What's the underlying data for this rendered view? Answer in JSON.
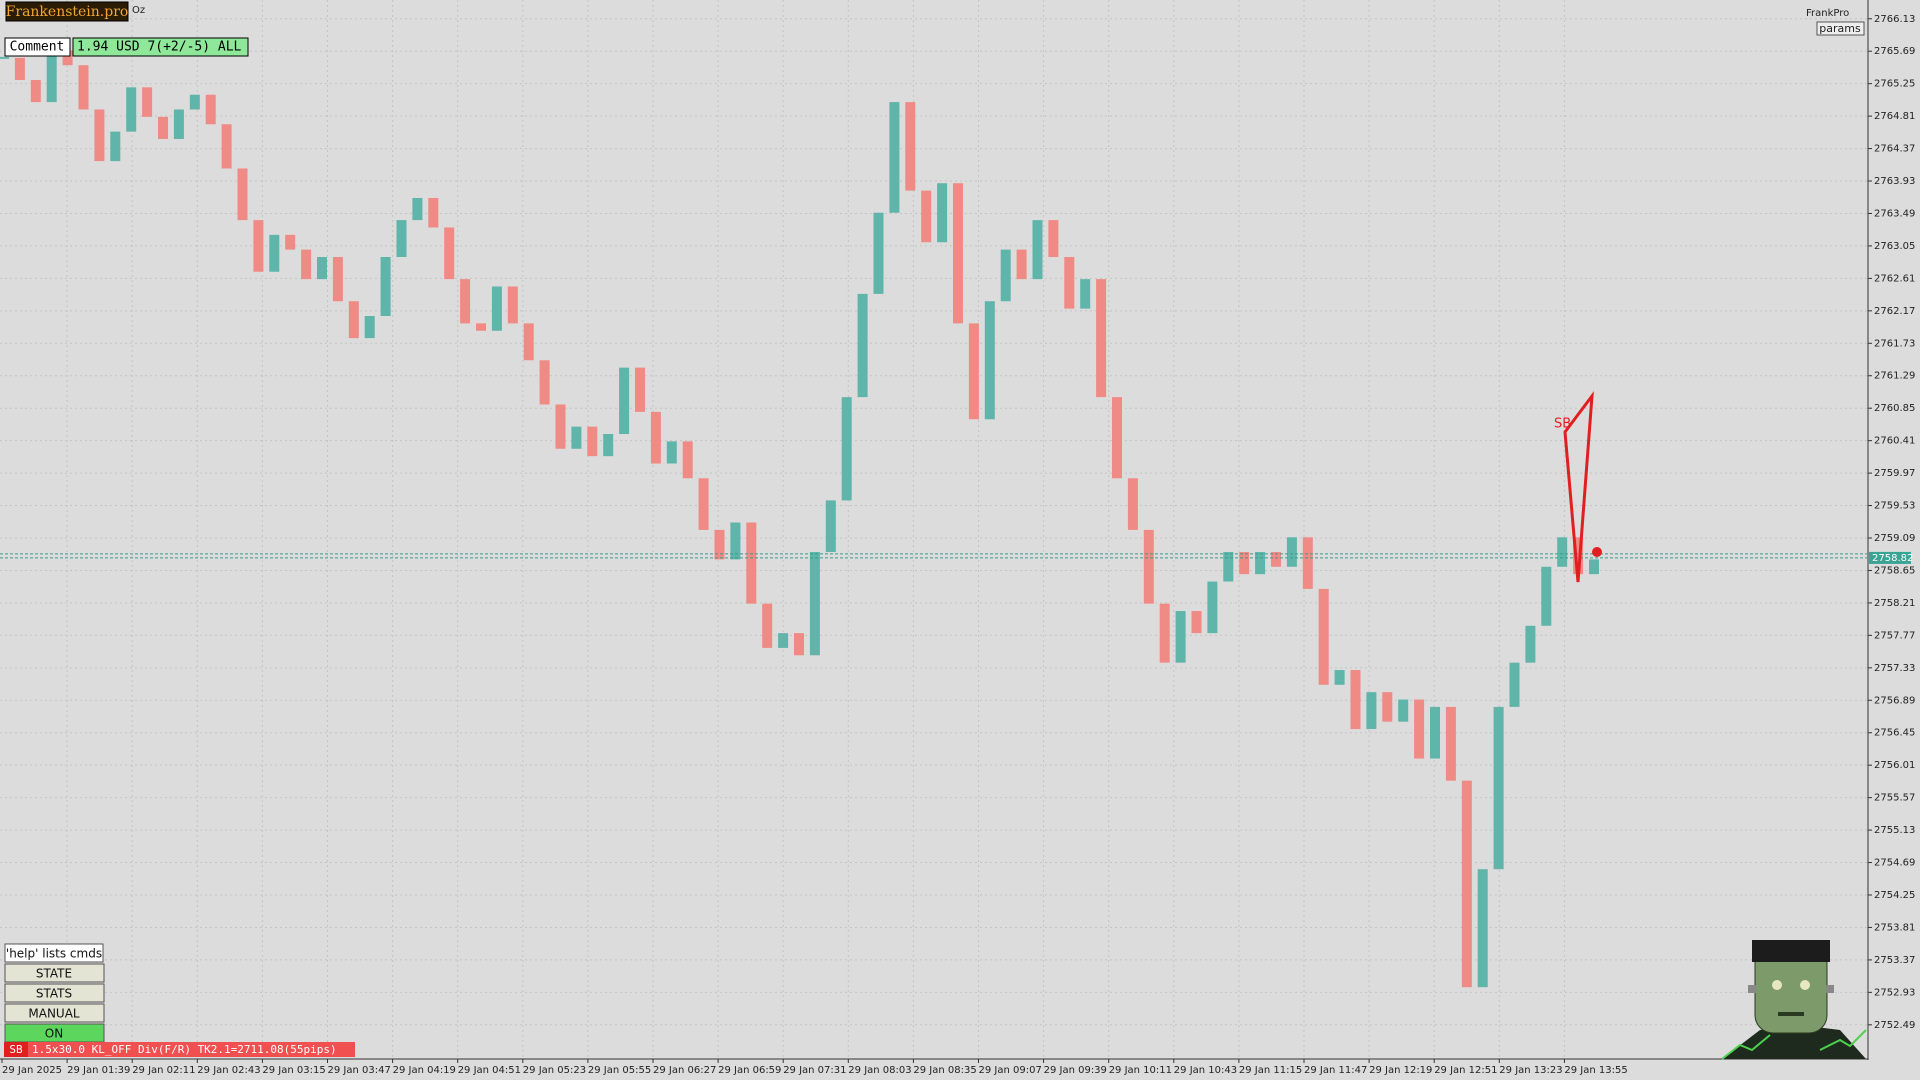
{
  "window": {
    "logo": "Frankenstein.pro",
    "symbol": "Oz",
    "brand": "FrankPro",
    "params_button": "params"
  },
  "comment": {
    "label": "Comment",
    "text": "1.94 USD 7(+2/-5) ALL"
  },
  "buttons": [
    "'help' lists cmds",
    "STATE",
    "STATS",
    "MANUAL",
    "ON"
  ],
  "status": {
    "tag": "SB",
    "text": "1.5x30.0 KL_OFF Div(F/R) TK2.1=2711.08(55pips)"
  },
  "chart_data": {
    "type": "candlestick",
    "xtick_labels": [
      "29 Jan 2025",
      "29 Jan 01:39",
      "29 Jan 02:11",
      "29 Jan 02:43",
      "29 Jan 03:15",
      "29 Jan 03:47",
      "29 Jan 04:19",
      "29 Jan 04:51",
      "29 Jan 05:23",
      "29 Jan 05:55",
      "29 Jan 06:27",
      "29 Jan 06:59",
      "29 Jan 07:31",
      "29 Jan 08:03",
      "29 Jan 08:35",
      "29 Jan 09:07",
      "29 Jan 09:39",
      "29 Jan 10:11",
      "29 Jan 10:43",
      "29 Jan 11:15",
      "29 Jan 11:47",
      "29 Jan 12:19",
      "29 Jan 12:51",
      "29 Jan 13:23",
      "29 Jan 13:55"
    ],
    "close": [
      2765.6,
      2765.3,
      2765.0,
      2765.7,
      2765.5,
      2764.9,
      2764.2,
      2764.6,
      2765.2,
      2764.8,
      2764.5,
      2764.9,
      2765.1,
      2764.7,
      2764.1,
      2763.4,
      2762.7,
      2763.2,
      2763.0,
      2762.6,
      2762.9,
      2762.3,
      2761.8,
      2762.1,
      2762.9,
      2763.4,
      2763.7,
      2763.3,
      2762.6,
      2762.0,
      2761.9,
      2762.5,
      2762.0,
      2761.5,
      2760.9,
      2760.3,
      2760.6,
      2760.2,
      2760.5,
      2761.4,
      2760.8,
      2760.1,
      2760.4,
      2759.9,
      2759.2,
      2758.8,
      2759.3,
      2758.2,
      2757.6,
      2757.8,
      2757.5,
      2758.9,
      2759.6,
      2761.0,
      2762.4,
      2763.5,
      2765.0,
      2763.8,
      2763.1,
      2763.9,
      2762.0,
      2760.7,
      2762.3,
      2763.0,
      2762.6,
      2763.4,
      2762.9,
      2762.2,
      2762.6,
      2761.0,
      2759.9,
      2759.2,
      2758.2,
      2757.4,
      2758.1,
      2757.8,
      2758.5,
      2758.9,
      2758.6,
      2758.9,
      2758.7,
      2759.1,
      2758.4,
      2757.1,
      2757.3,
      2756.5,
      2757.0,
      2756.6,
      2756.9,
      2756.1,
      2756.8,
      2755.8,
      2753.0,
      2754.6,
      2756.8,
      2757.4,
      2757.9,
      2758.7,
      2759.1,
      2758.6,
      2758.8
    ],
    "ylim": [
      2752.04,
      2766.33
    ],
    "yticks": [
      2766.13,
      2765.69,
      2765.25,
      2764.81,
      2764.37,
      2763.93,
      2763.49,
      2763.05,
      2762.61,
      2762.17,
      2761.73,
      2761.29,
      2760.85,
      2760.41,
      2759.97,
      2759.53,
      2759.09,
      2758.65,
      2758.21,
      2757.77,
      2757.33,
      2756.89,
      2756.45,
      2756.01,
      2755.57,
      2755.13,
      2754.69,
      2754.25,
      2753.81,
      2753.37,
      2752.93,
      2752.49
    ],
    "current_price": 2758.82,
    "pattern_label": "SB",
    "up_color": "#5fb5aa",
    "down_color": "#f08a84",
    "grid": true
  }
}
